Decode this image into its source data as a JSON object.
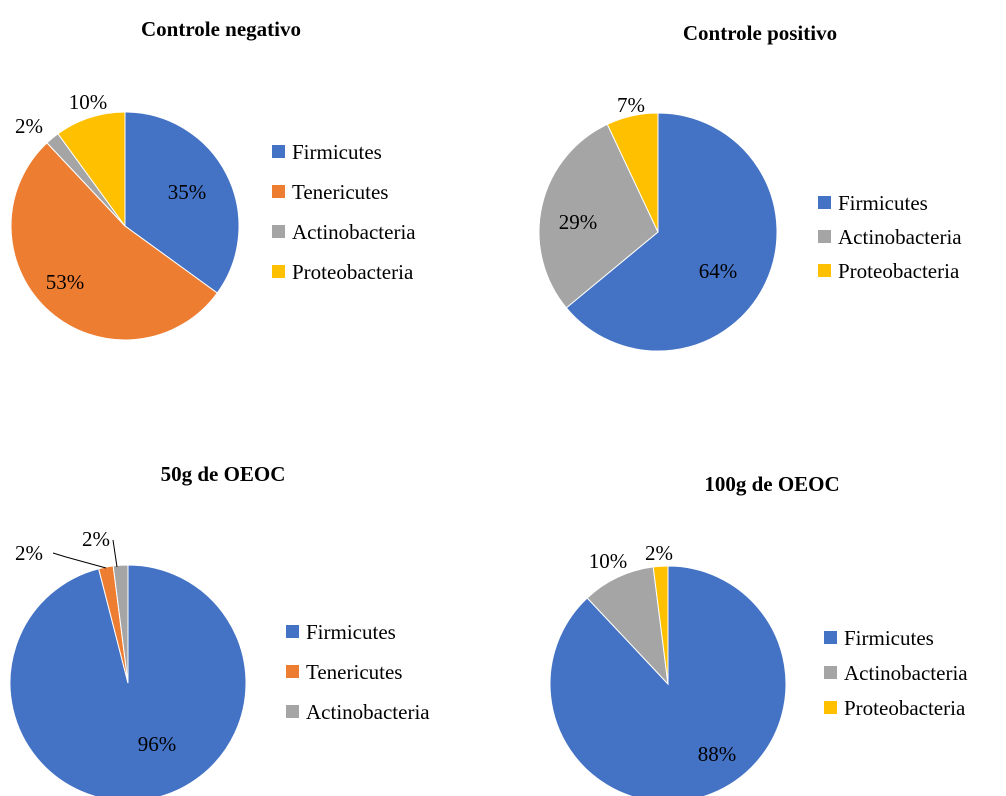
{
  "colors": {
    "Firmicutes": "#4472c4",
    "Tenericutes": "#ed7d31",
    "Actinobacteria": "#a5a5a5",
    "Proteobacteria": "#ffc000"
  },
  "chart_data": [
    {
      "type": "pie",
      "title": "Controle negativo",
      "labels": [
        "Firmicutes",
        "Tenericutes",
        "Actinobacteria",
        "Proteobacteria"
      ],
      "values": [
        35,
        53,
        2,
        10
      ],
      "value_labels": [
        "35%",
        "53%",
        "2%",
        "10%"
      ],
      "legend_position": "right"
    },
    {
      "type": "pie",
      "title": "Controle positivo",
      "labels": [
        "Firmicutes",
        "Actinobacteria",
        "Proteobacteria"
      ],
      "values": [
        64,
        29,
        7
      ],
      "value_labels": [
        "64%",
        "29%",
        "7%"
      ],
      "legend_position": "right"
    },
    {
      "type": "pie",
      "title": "50g de OEOC",
      "labels": [
        "Firmicutes",
        "Tenericutes",
        "Actinobacteria"
      ],
      "values": [
        96,
        2,
        2
      ],
      "value_labels": [
        "96%",
        "2%",
        "2%"
      ],
      "legend_position": "right"
    },
    {
      "type": "pie",
      "title": "100g de OEOC",
      "labels": [
        "Firmicutes",
        "Actinobacteria",
        "Proteobacteria"
      ],
      "values": [
        88,
        10,
        2
      ],
      "value_labels": [
        "88%",
        "10%",
        "2%"
      ],
      "legend_position": "right"
    }
  ]
}
